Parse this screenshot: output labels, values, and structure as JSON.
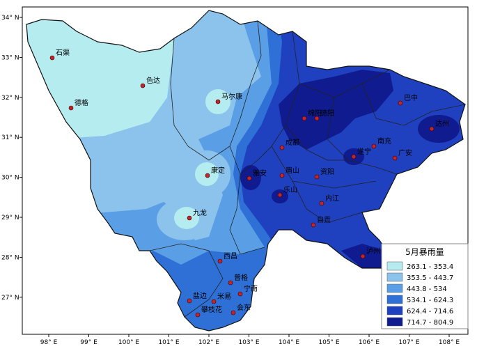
{
  "map": {
    "lon_labels": [
      "98° E",
      "99° E",
      "100° E",
      "101° E",
      "102° E",
      "103° E",
      "104° E",
      "105° E",
      "106° E",
      "107° E",
      "108° E"
    ],
    "lat_labels": [
      "34° N",
      "33° N",
      "32° N",
      "31° N",
      "30° N",
      "29° N",
      "28° N",
      "27° N"
    ],
    "cities": [
      "石渠",
      "色达",
      "马尔康",
      "德格",
      "巴中",
      "绵阳",
      "德阳",
      "达州",
      "南充",
      "遂宁",
      "广安",
      "成都",
      "雅安",
      "眉山",
      "资阳",
      "乐山",
      "内江",
      "自贡",
      "泸州",
      "康定",
      "九龙",
      "西昌",
      "普格",
      "宁南",
      "盐边",
      "米易",
      "攀枝花",
      "会东"
    ],
    "legend": {
      "title": "5月暴雨量",
      "items": [
        {
          "label": "263.1 - 353.4",
          "color": "#b4ecf0"
        },
        {
          "label": "353.5 - 443.7",
          "color": "#8cc3ec"
        },
        {
          "label": "443.8 - 534",
          "color": "#5a9fe6"
        },
        {
          "label": "534.1 - 624.3",
          "color": "#2f70d6"
        },
        {
          "label": "624.4 - 714.6",
          "color": "#1f40bf"
        },
        {
          "label": "714.7 - 804.9",
          "color": "#0f1b8f"
        }
      ]
    }
  }
}
